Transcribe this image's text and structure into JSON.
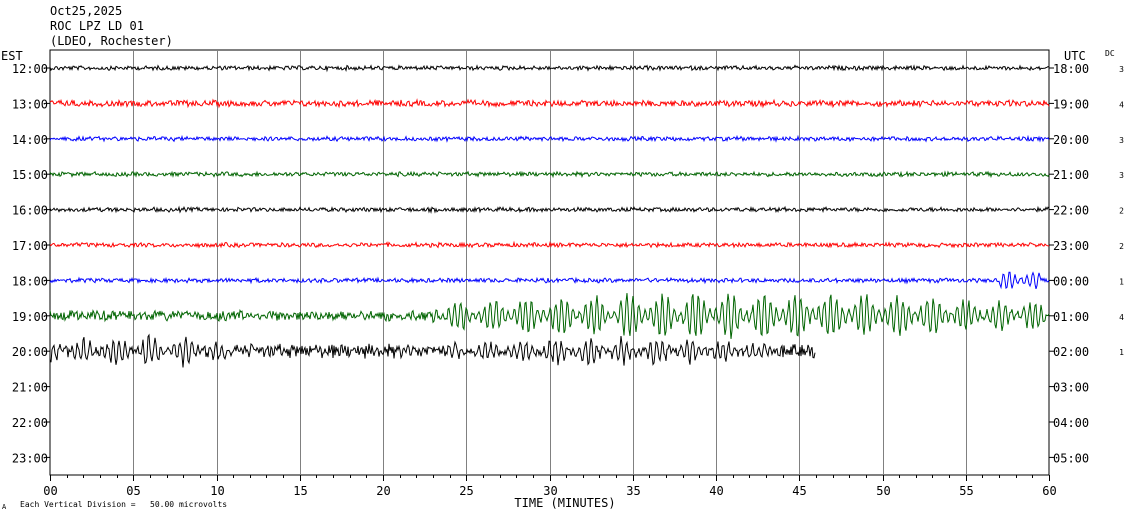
{
  "header": {
    "date": "Oct25,2025",
    "station": "ROC LPZ LD 01",
    "network": "(LDEO, Rochester)"
  },
  "labels": {
    "left_zone": "EST",
    "right_zone": "UTC",
    "dc": "DC",
    "xlabel": "TIME (MINUTES)",
    "footnote": "Each Vertical Division =   50.00 microvolts",
    "footnote_mark": "A"
  },
  "chart_data": {
    "type": "line",
    "title": "ROC LPZ LD 01",
    "xlabel": "TIME (MINUTES)",
    "xlim": [
      0,
      60
    ],
    "x_ticks": [
      "00",
      "05",
      "10",
      "15",
      "20",
      "25",
      "30",
      "35",
      "40",
      "45",
      "50",
      "55",
      "60"
    ],
    "grid": true,
    "trace_colors": [
      "#000000",
      "#ff0000",
      "#0000ff",
      "#006400"
    ],
    "rows": [
      {
        "est": "12:00",
        "utc": "18:00",
        "dc": "3",
        "color": "#000000",
        "end_min": 60,
        "amplitude": 2.5
      },
      {
        "est": "13:00",
        "utc": "19:00",
        "dc": "4",
        "color": "#ff0000",
        "end_min": 60,
        "amplitude": 3.5
      },
      {
        "est": "14:00",
        "utc": "20:00",
        "dc": "3",
        "color": "#0000ff",
        "end_min": 60,
        "amplitude": 2.5
      },
      {
        "est": "15:00",
        "utc": "21:00",
        "dc": "3",
        "color": "#006400",
        "end_min": 60,
        "amplitude": 2.5
      },
      {
        "est": "16:00",
        "utc": "22:00",
        "dc": "2",
        "color": "#000000",
        "end_min": 60,
        "amplitude": 2.5
      },
      {
        "est": "17:00",
        "utc": "23:00",
        "dc": "2",
        "color": "#ff0000",
        "end_min": 60,
        "amplitude": 2.5
      },
      {
        "est": "18:00",
        "utc": "00:00",
        "dc": "1",
        "color": "#0000ff",
        "end_min": 60,
        "amplitude": 2.5
      },
      {
        "est": "19:00",
        "utc": "01:00",
        "dc": "4",
        "color": "#006400",
        "end_min": 60,
        "amplitude": 6
      },
      {
        "est": "20:00",
        "utc": "02:00",
        "dc": "1",
        "color": "#000000",
        "end_min": 46,
        "amplitude": 8
      },
      {
        "est": "21:00",
        "utc": "03:00",
        "dc": "",
        "color": "#000000",
        "end_min": 0,
        "amplitude": 0
      },
      {
        "est": "22:00",
        "utc": "04:00",
        "dc": "",
        "color": "#000000",
        "end_min": 0,
        "amplitude": 0
      },
      {
        "est": "23:00",
        "utc": "05:00",
        "dc": "",
        "color": "#000000",
        "end_min": 0,
        "amplitude": 0
      }
    ],
    "events": [
      {
        "row": 6,
        "start_min": 57,
        "end_min": 59.5,
        "amplitude": 12
      },
      {
        "row": 7,
        "start_min": 23,
        "end_min": 60,
        "amplitude": 22
      },
      {
        "row": 8,
        "start_min": 0,
        "end_min": 11,
        "amplitude": 14
      },
      {
        "row": 8,
        "start_min": 24,
        "end_min": 44,
        "amplitude": 12
      }
    ]
  }
}
